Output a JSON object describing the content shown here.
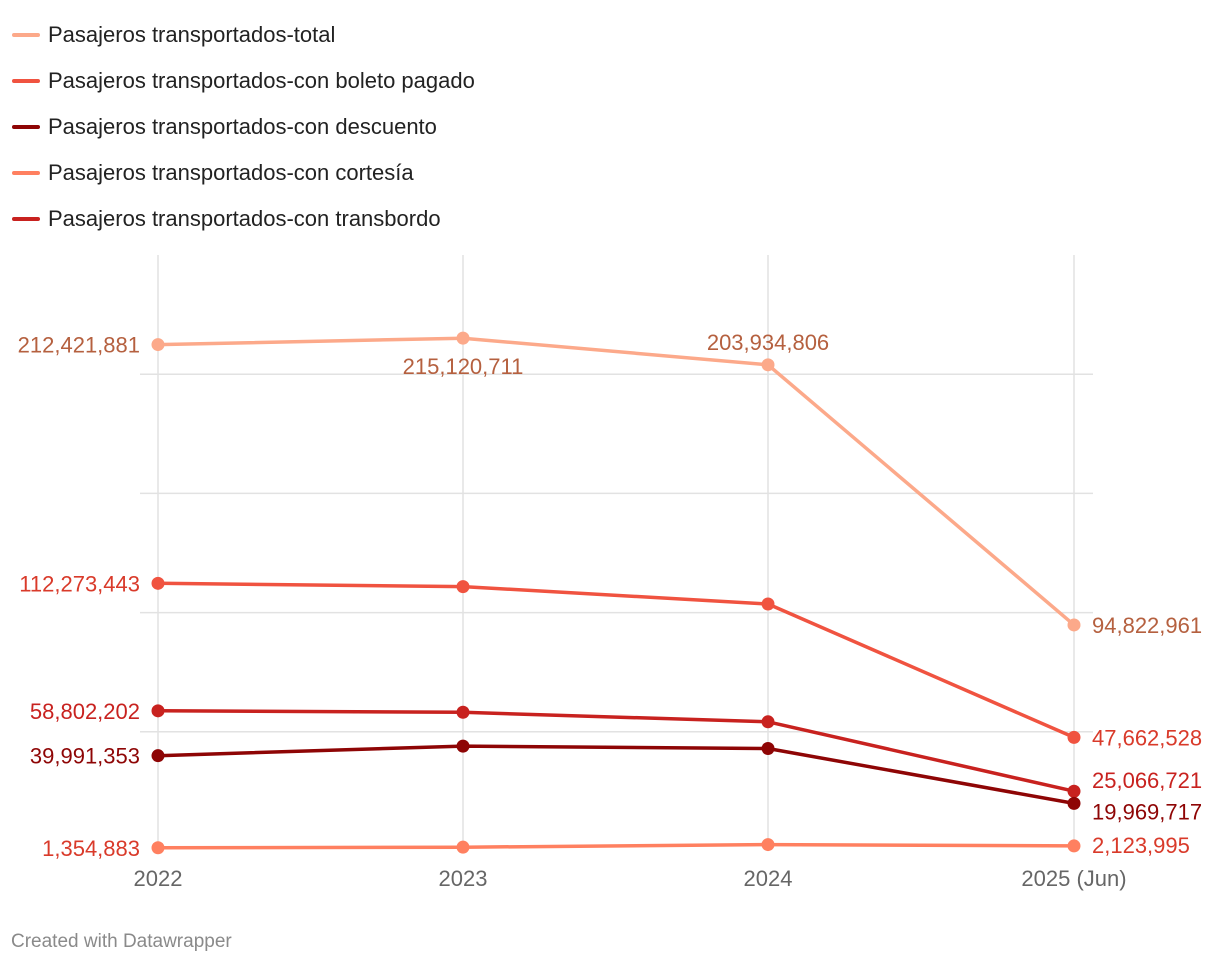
{
  "chart_data": {
    "type": "line",
    "title": "",
    "xlabel": "",
    "ylabel": "",
    "categories": [
      "2022",
      "2023",
      "2024",
      "2025 (Jun)"
    ],
    "ylim": [
      0,
      250000000
    ],
    "grid": true,
    "legend_position": "top-left",
    "series": [
      {
        "name": "Pasajeros transportados-total",
        "color": "#fca98a",
        "label_color": "#b5603f",
        "values": [
          212421881,
          215120711,
          203934806,
          94822961
        ],
        "labels": [
          "212,421,881",
          "215,120,711",
          "203,934,806",
          "94,822,961"
        ]
      },
      {
        "name": "Pasajeros transportados-con boleto pagado",
        "color": "#f05340",
        "label_color": "#d93a2a",
        "values": [
          112273443,
          110900000,
          103600000,
          47662528
        ],
        "labels": [
          "112,273,443",
          "",
          "",
          "47,662,528"
        ]
      },
      {
        "name": "Pasajeros transportados-con descuento",
        "color": "#8e0505",
        "label_color": "#8e0505",
        "values": [
          39991353,
          44000000,
          43000000,
          19969717
        ],
        "labels": [
          "39,991,353",
          "",
          "",
          "19,969,717"
        ]
      },
      {
        "name": "Pasajeros transportados-con cortesía",
        "color": "#ff8060",
        "label_color": "#d93a2a",
        "values": [
          1354883,
          1600000,
          2700000,
          2123995
        ],
        "labels": [
          "1,354,883",
          "",
          "",
          "2,123,995"
        ]
      },
      {
        "name": "Pasajeros transportados-con transbordo",
        "color": "#c8221f",
        "label_color": "#c8221f",
        "values": [
          58802202,
          58200000,
          54200000,
          25066721
        ],
        "labels": [
          "58,802,202",
          "",
          "",
          "25,066,721"
        ]
      }
    ]
  },
  "footer": {
    "credit": "Created with Datawrapper"
  }
}
